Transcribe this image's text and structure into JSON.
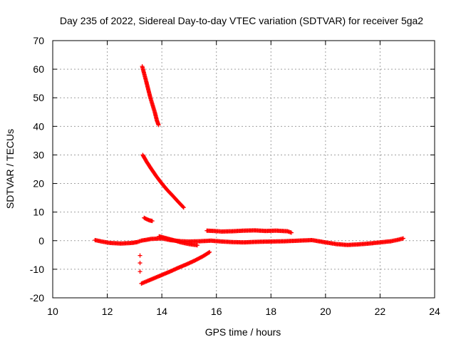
{
  "chart_data": {
    "type": "scatter",
    "title": "Day 235 of 2022, Sidereal Day-to-day VTEC variation (SDTVAR) for receiver 5ga2",
    "xlabel": "GPS time / hours",
    "ylabel": "SDTVAR / TECUs",
    "xlim": [
      10,
      24
    ],
    "ylim": [
      -20,
      70
    ],
    "xticks": [
      10,
      12,
      14,
      16,
      18,
      20,
      22,
      24
    ],
    "yticks": [
      -20,
      -10,
      0,
      10,
      20,
      30,
      40,
      50,
      60,
      70
    ],
    "grid": true,
    "legend": "none",
    "marker": "+",
    "color": "#ff0000",
    "series": [
      {
        "name": "baseline-arc",
        "x": [
          11.55,
          11.8,
          12.1,
          12.5,
          12.9,
          13.1,
          13.25,
          13.6,
          14.0,
          14.3,
          14.7,
          15.0,
          15.4,
          15.8,
          16.2,
          16.6,
          17.0,
          17.5,
          18.0,
          18.5,
          19.0,
          19.5,
          20.0,
          20.4,
          20.8,
          21.2,
          21.6,
          22.0,
          22.4,
          22.7,
          22.85
        ],
        "y": [
          0.2,
          -0.3,
          -0.8,
          -1.0,
          -0.8,
          -0.5,
          0.0,
          0.6,
          0.8,
          0.2,
          -0.2,
          -0.3,
          -0.2,
          0.0,
          -0.3,
          -0.5,
          -0.6,
          -0.4,
          -0.3,
          -0.2,
          0.0,
          0.2,
          -0.6,
          -1.2,
          -1.5,
          -1.3,
          -1.0,
          -0.6,
          -0.2,
          0.4,
          0.8
        ]
      },
      {
        "name": "steep-arc",
        "x": [
          13.28,
          13.35,
          13.42,
          13.5,
          13.58,
          13.66,
          13.74,
          13.82,
          13.88
        ],
        "y": [
          61,
          58.5,
          56,
          53,
          50,
          47.5,
          45,
          42,
          40.5
        ]
      },
      {
        "name": "decay-arc",
        "x": [
          13.3,
          13.45,
          13.6,
          13.8,
          14.0,
          14.2,
          14.4,
          14.6,
          14.8
        ],
        "y": [
          30,
          27.5,
          25.3,
          22.5,
          20,
          17.7,
          15.7,
          13.6,
          11.6
        ]
      },
      {
        "name": "small-arc",
        "x": [
          13.35,
          13.45,
          13.55,
          13.65
        ],
        "y": [
          8,
          7.5,
          7.1,
          6.9
        ]
      },
      {
        "name": "rising-arc",
        "x": [
          13.25,
          13.5,
          13.8,
          14.0,
          14.3,
          14.6,
          14.9,
          15.2,
          15.5,
          15.75
        ],
        "y": [
          -15,
          -14,
          -12.8,
          -12,
          -10.8,
          -9.5,
          -8.3,
          -7,
          -5.5,
          -4
        ]
      },
      {
        "name": "offset-arc",
        "x": [
          15.65,
          15.9,
          16.2,
          16.6,
          17.0,
          17.4,
          17.8,
          18.2,
          18.6,
          18.75
        ],
        "y": [
          3.5,
          3.4,
          3.2,
          3.3,
          3.5,
          3.6,
          3.4,
          3.5,
          3.3,
          2.8
        ]
      },
      {
        "name": "mid-arc",
        "x": [
          13.9,
          14.1,
          14.3,
          14.5,
          14.7,
          15.0,
          15.3
        ],
        "y": [
          1.5,
          1.0,
          0.5,
          0.0,
          -0.6,
          -1.2,
          -1.6
        ]
      },
      {
        "name": "isolated-points",
        "x": [
          13.2,
          13.2,
          13.2
        ],
        "y": [
          -5.2,
          -7.8,
          -10.8
        ]
      }
    ]
  }
}
